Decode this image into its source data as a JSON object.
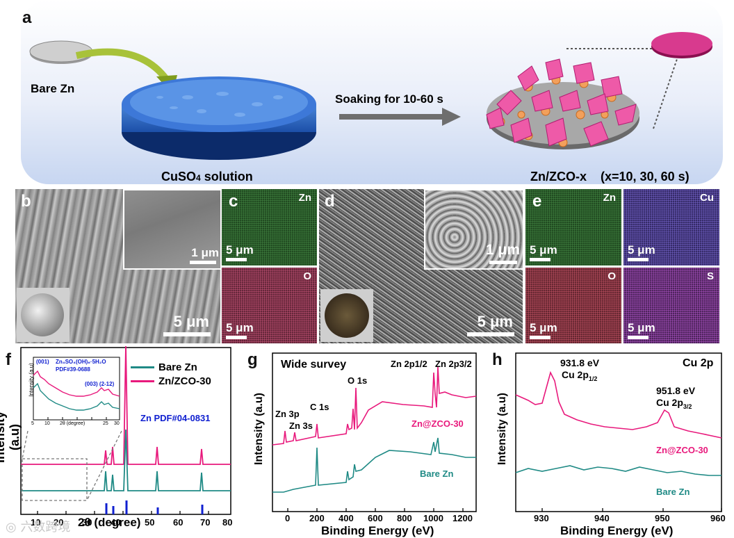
{
  "panel_a": {
    "letter": "a",
    "bare_zn": "Bare Zn",
    "solution_main": "CuSO",
    "solution_sub": "4",
    "solution_tail": " solution",
    "arrow_text": "Soaking for 10-60 s",
    "product": "Zn/ZCO-x",
    "product_x": "(x=10, 30, 60 s)"
  },
  "panel_b": {
    "letter": "b",
    "inset_scale": "1 μm",
    "main_scale": "5 μm"
  },
  "panel_c": {
    "letter": "c",
    "maps": [
      {
        "element": "Zn",
        "scale": "5 μm"
      },
      {
        "element": "O",
        "scale": "5 μm"
      }
    ]
  },
  "panel_d": {
    "letter": "d",
    "inset_scale": "1 μm",
    "main_scale": "5 μm"
  },
  "panel_e": {
    "letter": "e",
    "maps": [
      {
        "element": "Zn",
        "scale": "5 μm"
      },
      {
        "element": "Cu",
        "scale": "5 μm"
      },
      {
        "element": "O",
        "scale": "5 μm"
      },
      {
        "element": "S",
        "scale": "5 μm"
      }
    ]
  },
  "panel_f": {
    "letter": "f",
    "ylabel": "Intensity (a.u)",
    "xlabel": "2θ (degree)",
    "xticks": [
      "10",
      "20",
      "30",
      "40",
      "50",
      "60",
      "70",
      "80"
    ],
    "legend": [
      "Bare Zn",
      "Zn/ZCO-30"
    ],
    "ref": "Zn PDF#04-0831",
    "inset": {
      "ylabel": "Intensity (a.u)",
      "xlabel": "2θ (degree)",
      "xticks": [
        "5",
        "10",
        "15",
        "20",
        "25",
        "30"
      ],
      "phase": "Zn₄SO₄(OH)₆·5H₂O",
      "pdf": "PDF#39-0688",
      "peak1": "(001)",
      "peak2": "(003) (2-12)"
    }
  },
  "panel_g": {
    "letter": "g",
    "title": "Wide survey",
    "ylabel": "Intensity (a.u)",
    "xlabel": "Binding Energy (eV)",
    "xticks": [
      "0",
      "200",
      "400",
      "600",
      "800",
      "1000",
      "1200"
    ],
    "peaks": [
      "Zn 3p",
      "Zn 3s",
      "C 1s",
      "O 1s",
      "Zn 2p1/2",
      "Zn 2p3/2"
    ],
    "series": [
      "Zn@ZCO-30",
      "Bare Zn"
    ]
  },
  "panel_h": {
    "letter": "h",
    "title": "Cu 2p",
    "ylabel": "Intensity (a.u)",
    "xlabel": "Binding Energy (eV)",
    "xticks": [
      "930",
      "940",
      "950",
      "960"
    ],
    "peak1_ev": "931.8 eV",
    "peak1_label": "Cu 2p",
    "peak1_sub": "1/2",
    "peak2_ev": "951.8 eV",
    "peak2_label": "Cu 2p",
    "peak2_sub": "3/2",
    "series": [
      "Zn@ZCO-30",
      "Bare Zn"
    ]
  },
  "watermark": "六数跨境",
  "colors": {
    "teal": "#1f8a85",
    "pink": "#e8197c",
    "blue": "#1020d0"
  },
  "chart_data": [
    {
      "type": "line",
      "title": "",
      "xlabel": "2θ (degree)",
      "ylabel": "Intensity (a.u)",
      "xlim": [
        8,
        80
      ],
      "series": [
        {
          "name": "Bare Zn",
          "peaks_x": [
            36.3,
            39.0,
            43.2,
            54.3,
            70.1
          ]
        },
        {
          "name": "Zn/ZCO-30",
          "peaks_x": [
            36.3,
            39.0,
            43.2,
            54.3,
            70.1
          ]
        },
        {
          "name": "Zn PDF#04-0831",
          "sticks_x": [
            36.3,
            39.0,
            43.2,
            54.3,
            70.1
          ]
        }
      ]
    },
    {
      "type": "line",
      "title": "Wide survey",
      "xlabel": "Binding Energy (eV)",
      "ylabel": "Intensity (a.u)",
      "xlim": [
        0,
        1300
      ],
      "series": [
        {
          "name": "Zn@ZCO-30",
          "peaks_x": [
            90,
            140,
            285,
            531,
            1022,
            1045
          ]
        },
        {
          "name": "Bare Zn",
          "peaks_x": [
            285,
            531,
            1022,
            1045
          ]
        }
      ]
    },
    {
      "type": "line",
      "title": "Cu 2p",
      "xlabel": "Binding Energy (eV)",
      "ylabel": "Intensity (a.u)",
      "xlim": [
        926,
        960
      ],
      "series": [
        {
          "name": "Zn@ZCO-30",
          "peaks_x": [
            931.8,
            951.8
          ]
        },
        {
          "name": "Bare Zn",
          "peaks_x": []
        }
      ]
    }
  ]
}
